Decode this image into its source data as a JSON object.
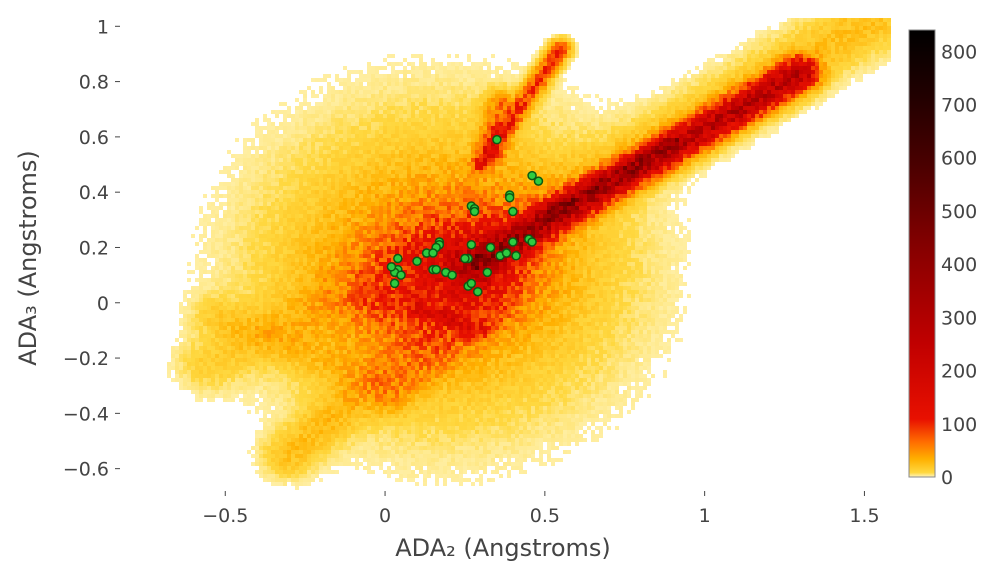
{
  "chart_data": {
    "type": "heatmap",
    "xlabel": "ADA₂ (Angstroms)",
    "ylabel": "ADA₃ (Angstroms)",
    "xlim": [
      -0.82,
      1.58
    ],
    "ylim": [
      -0.67,
      1.03
    ],
    "x_ticks": [
      {
        "value": -0.5,
        "label": "−0.5"
      },
      {
        "value": 0,
        "label": "0"
      },
      {
        "value": 0.5,
        "label": "0.5"
      },
      {
        "value": 1,
        "label": "1"
      },
      {
        "value": 1.5,
        "label": "1.5"
      }
    ],
    "y_ticks": [
      {
        "value": -0.6,
        "label": "−0.6"
      },
      {
        "value": -0.4,
        "label": "−0.4"
      },
      {
        "value": -0.2,
        "label": "−0.2"
      },
      {
        "value": 0,
        "label": "0"
      },
      {
        "value": 0.2,
        "label": "0.2"
      },
      {
        "value": 0.4,
        "label": "0.4"
      },
      {
        "value": 0.6,
        "label": "0.6"
      },
      {
        "value": 0.8,
        "label": "0.8"
      },
      {
        "value": 1,
        "label": "1"
      }
    ],
    "colorbar": {
      "min": 0,
      "max": 840,
      "ticks": [
        {
          "value": 0,
          "label": "0"
        },
        {
          "value": 100,
          "label": "100"
        },
        {
          "value": 200,
          "label": "200"
        },
        {
          "value": 300,
          "label": "300"
        },
        {
          "value": 400,
          "label": "400"
        },
        {
          "value": 500,
          "label": "500"
        },
        {
          "value": 600,
          "label": "600"
        },
        {
          "value": 700,
          "label": "700"
        },
        {
          "value": 800,
          "label": "800"
        }
      ],
      "colorscale": [
        [
          0,
          "#fff5c0"
        ],
        [
          0.01,
          "#ffd840"
        ],
        [
          0.04,
          "#ffb000"
        ],
        [
          0.08,
          "#ff6a00"
        ],
        [
          0.13,
          "#e81000"
        ],
        [
          0.3,
          "#c00000"
        ],
        [
          0.5,
          "#8a0000"
        ],
        [
          0.7,
          "#4a0000"
        ],
        [
          0.85,
          "#220000"
        ],
        [
          1,
          "#000000"
        ]
      ]
    },
    "marker_color": "#2ecc40",
    "marker_edge": "#0c5a14",
    "scatter_points": [
      [
        0.35,
        0.59
      ],
      [
        0.46,
        0.46
      ],
      [
        0.48,
        0.44
      ],
      [
        0.39,
        0.39
      ],
      [
        0.39,
        0.38
      ],
      [
        0.27,
        0.35
      ],
      [
        0.28,
        0.34
      ],
      [
        0.28,
        0.33
      ],
      [
        0.4,
        0.33
      ],
      [
        0.17,
        0.22
      ],
      [
        0.17,
        0.21
      ],
      [
        0.27,
        0.21
      ],
      [
        0.16,
        0.2
      ],
      [
        0.4,
        0.22
      ],
      [
        0.45,
        0.23
      ],
      [
        0.46,
        0.22
      ],
      [
        0.33,
        0.2
      ],
      [
        0.13,
        0.18
      ],
      [
        0.15,
        0.18
      ],
      [
        0.36,
        0.17
      ],
      [
        0.38,
        0.18
      ],
      [
        0.41,
        0.17
      ],
      [
        0.26,
        0.16
      ],
      [
        0.25,
        0.16
      ],
      [
        0.1,
        0.15
      ],
      [
        0.04,
        0.16
      ],
      [
        0.04,
        0.12
      ],
      [
        0.03,
        0.11
      ],
      [
        0.05,
        0.1
      ],
      [
        0.15,
        0.12
      ],
      [
        0.16,
        0.12
      ],
      [
        0.19,
        0.11
      ],
      [
        0.21,
        0.1
      ],
      [
        0.32,
        0.11
      ],
      [
        0.26,
        0.06
      ],
      [
        0.27,
        0.07
      ],
      [
        0.29,
        0.04
      ],
      [
        0.03,
        0.07
      ],
      [
        0.02,
        0.13
      ]
    ]
  }
}
